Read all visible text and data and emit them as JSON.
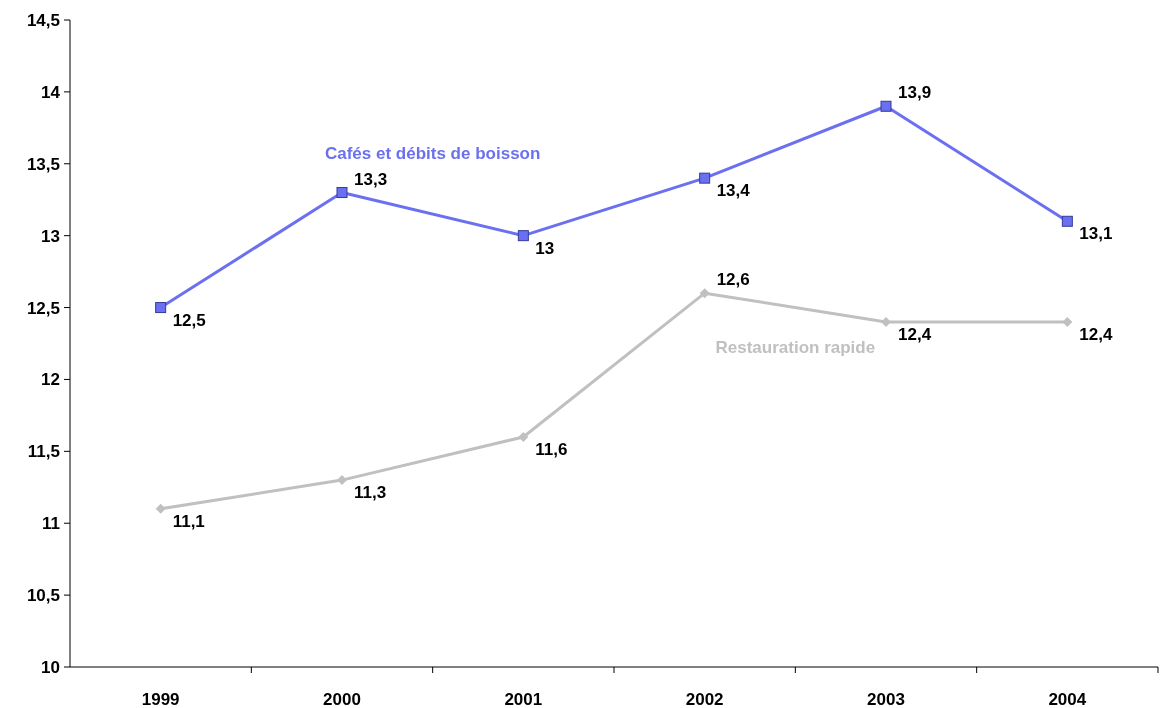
{
  "chart_data": {
    "type": "line",
    "categories": [
      "1999",
      "2000",
      "2001",
      "2002",
      "2003",
      "2004"
    ],
    "series": [
      {
        "name": "Cafés et débits de boisson",
        "color": "#6b70f0",
        "marker": "square",
        "values": [
          12.5,
          13.3,
          13.0,
          13.4,
          13.9,
          13.1
        ],
        "value_labels": [
          "12,5",
          "13,3",
          "13",
          "13,4",
          "13,9",
          "13,1"
        ]
      },
      {
        "name": "Restauration rapide",
        "color": "#c0c0c0",
        "marker": "diamond",
        "values": [
          11.1,
          11.3,
          11.6,
          12.6,
          12.4,
          12.4
        ],
        "value_labels": [
          "11,1",
          "11,3",
          "11,6",
          "12,6",
          "12,4",
          "12,4"
        ]
      }
    ],
    "ylim": [
      10,
      14.5
    ],
    "yticks": [
      10,
      {
        "value": 10.5,
        "label": "10,5"
      },
      11,
      {
        "value": 11.5,
        "label": "11,5"
      },
      12,
      {
        "value": 12.5,
        "label": "12,5"
      },
      13,
      {
        "value": 13.5,
        "label": "13,5"
      },
      14,
      {
        "value": 14.5,
        "label": "14,5"
      }
    ],
    "grid": false
  }
}
